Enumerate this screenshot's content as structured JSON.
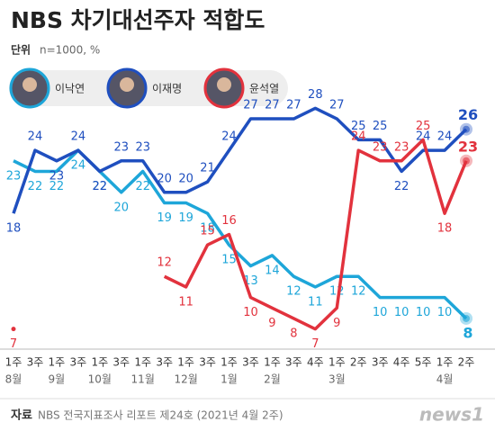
{
  "chart_data": {
    "type": "line",
    "title": "NBS 차기대선주자 적합도",
    "unit_label": "단위",
    "unit": "n=1000, %",
    "categories": [
      "1주",
      "3주",
      "1주",
      "3주",
      "1주",
      "3주",
      "1주",
      "3주",
      "1주",
      "3주",
      "1주",
      "3주",
      "1주",
      "3주",
      "4주",
      "1주",
      "2주",
      "3주",
      "4주",
      "5주",
      "1주",
      "2주"
    ],
    "months": [
      "8월",
      null,
      "9월",
      null,
      "10월",
      null,
      "11월",
      null,
      "12월",
      null,
      "1월",
      null,
      "2월",
      null,
      null,
      "3월",
      null,
      null,
      null,
      null,
      "4월",
      null
    ],
    "series": [
      {
        "name": "이낙연",
        "color": "#1ea6d9",
        "values": [
          23,
          22,
          22,
          24,
          22,
          20,
          22,
          19,
          19,
          18,
          15,
          13,
          14,
          12,
          11,
          12,
          12,
          10,
          10,
          10,
          10,
          8
        ]
      },
      {
        "name": "이재명",
        "color": "#1f4fbf",
        "values": [
          18,
          24,
          23,
          24,
          22,
          23,
          23,
          20,
          20,
          21,
          24,
          27,
          27,
          27,
          28,
          27,
          25,
          25,
          22,
          24,
          24,
          26
        ]
      },
      {
        "name": "윤석열",
        "color": "#e2323d",
        "values": [
          7,
          null,
          null,
          null,
          null,
          null,
          null,
          12,
          11,
          15,
          16,
          10,
          9,
          8,
          7,
          9,
          24,
          23,
          23,
          25,
          18,
          23
        ]
      }
    ],
    "ylim": [
      5,
      30
    ],
    "source_label": "자료",
    "source": "NBS 전국지표조사 리포트 제24호 (2021년 4월 2주)",
    "logo": "news1"
  }
}
